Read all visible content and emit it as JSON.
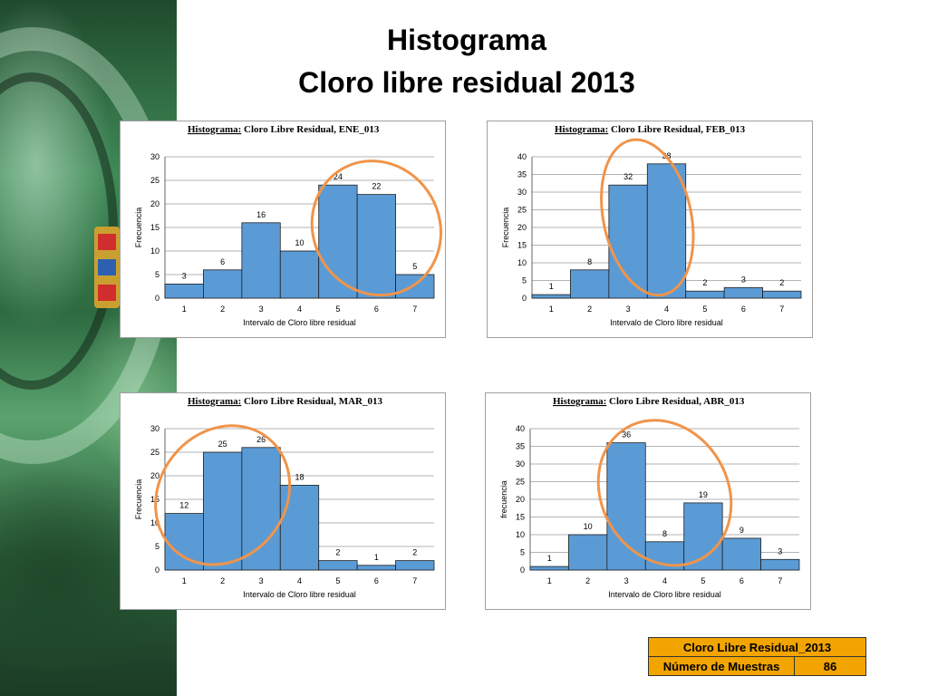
{
  "title": {
    "line1": "Histograma",
    "line2": "Cloro libre residual 2013"
  },
  "chart_data": [
    {
      "type": "bar",
      "title": {
        "prefix": "Histograma:",
        "rest": "Cloro Libre Residual, ENE_013"
      },
      "xlabel": "Intervalo de Cloro libre residual",
      "ylabel": "Frecuencia",
      "categories": [
        "1",
        "2",
        "3",
        "4",
        "5",
        "6",
        "7"
      ],
      "values": [
        3,
        6,
        16,
        10,
        24,
        22,
        5
      ],
      "ylim": [
        0,
        30
      ],
      "yticks": [
        0,
        5,
        10,
        15,
        20,
        25,
        30
      ],
      "highlight": [
        5,
        7
      ],
      "bar_color": "#5b9bd5"
    },
    {
      "type": "bar",
      "title": {
        "prefix": "Histograma:",
        "rest": "Cloro Libre Residual, FEB_013"
      },
      "xlabel": "Intervalo de Cloro libre residual",
      "ylabel": "Frecuencia",
      "categories": [
        "1",
        "2",
        "3",
        "4",
        "5",
        "6",
        "7"
      ],
      "values": [
        1,
        8,
        32,
        38,
        2,
        3,
        2
      ],
      "ylim": [
        0,
        40
      ],
      "yticks": [
        0,
        5,
        10,
        15,
        20,
        25,
        30,
        35,
        40
      ],
      "highlight": [
        3,
        4
      ],
      "bar_color": "#5b9bd5"
    },
    {
      "type": "bar",
      "title": {
        "prefix": "Histograma:",
        "rest": "Cloro Libre Residual, MAR_013"
      },
      "xlabel": "Intervalo de Cloro libre residual",
      "ylabel": "Frecuencia",
      "categories": [
        "1",
        "2",
        "3",
        "4",
        "5",
        "6",
        "7"
      ],
      "values": [
        12,
        25,
        26,
        18,
        2,
        1,
        2
      ],
      "ylim": [
        0,
        30
      ],
      "yticks": [
        0,
        5,
        10,
        15,
        20,
        25,
        30
      ],
      "highlight": [
        1,
        3
      ],
      "bar_color": "#5b9bd5"
    },
    {
      "type": "bar",
      "title": {
        "prefix": "Histograma:",
        "rest": "Cloro Libre Residual, ABR_013"
      },
      "xlabel": "Intervalo de Cloro libre residual",
      "ylabel": "frecuencia",
      "categories": [
        "1",
        "2",
        "3",
        "4",
        "5",
        "6",
        "7"
      ],
      "values": [
        1,
        10,
        36,
        8,
        19,
        9,
        3
      ],
      "ylim": [
        0,
        40
      ],
      "yticks": [
        0,
        5,
        10,
        15,
        20,
        25,
        30,
        35,
        40
      ],
      "highlight": [
        3,
        5
      ],
      "bar_color": "#5b9bd5"
    }
  ],
  "highlight_color": "#f0944a",
  "summary": {
    "header": "Cloro Libre Residual_2013",
    "label": "Número de Muestras",
    "value": "86",
    "bg_color": "#f2a400"
  }
}
